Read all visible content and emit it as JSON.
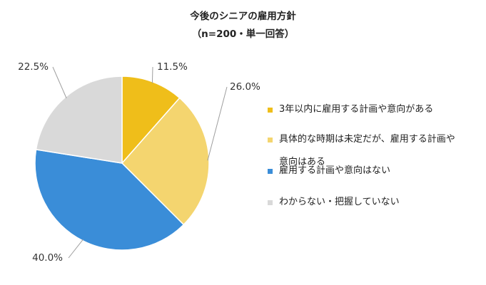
{
  "chart_data": {
    "type": "pie",
    "title": "今後のシニアの雇用方針",
    "subtitle": "（n=200・単一回答）",
    "slices": [
      {
        "label": "3年以内に雇用する計画や意向がある",
        "value": 11.5,
        "value_label": "11.5%",
        "color": "#EFBE1A"
      },
      {
        "label": "具体的な時期は未定だが、雇用する計画や意向はある",
        "label_lines": [
          "具体的な時期は未定だが、雇用する計画や",
          "意向はある"
        ],
        "value": 26.0,
        "value_label": "26.0%",
        "color": "#F4D56F"
      },
      {
        "label": "雇用する計画や意向はない",
        "value": 40.0,
        "value_label": "40.0%",
        "color": "#3A8DD8"
      },
      {
        "label": "わからない・把握していない",
        "value": 22.5,
        "value_label": "22.5%",
        "color": "#D9D9D9"
      }
    ],
    "legend_position": "right",
    "start_angle": "12 o'clock, clockwise"
  }
}
